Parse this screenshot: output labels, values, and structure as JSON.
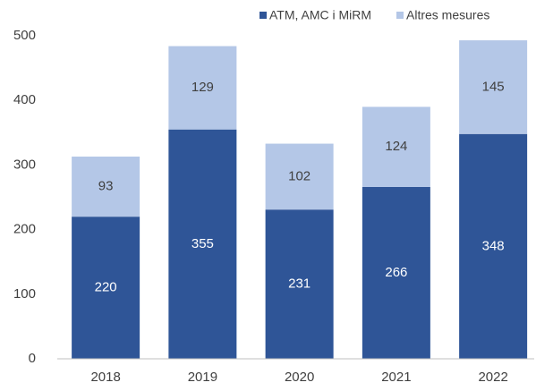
{
  "chart_data": {
    "type": "stacked_bar",
    "categories": [
      "2018",
      "2019",
      "2020",
      "2021",
      "2022"
    ],
    "series": [
      {
        "name": "ATM, AMC i MiRM",
        "color": "#2f5597",
        "values": [
          220,
          355,
          231,
          266,
          348
        ]
      },
      {
        "name": "Altres mesures",
        "color": "#b4c7e7",
        "values": [
          93,
          129,
          102,
          124,
          145
        ]
      }
    ],
    "ylim": [
      0,
      500
    ],
    "yticks": [
      0,
      100,
      200,
      300,
      400,
      500
    ],
    "grid": false,
    "legend": "top-right"
  }
}
